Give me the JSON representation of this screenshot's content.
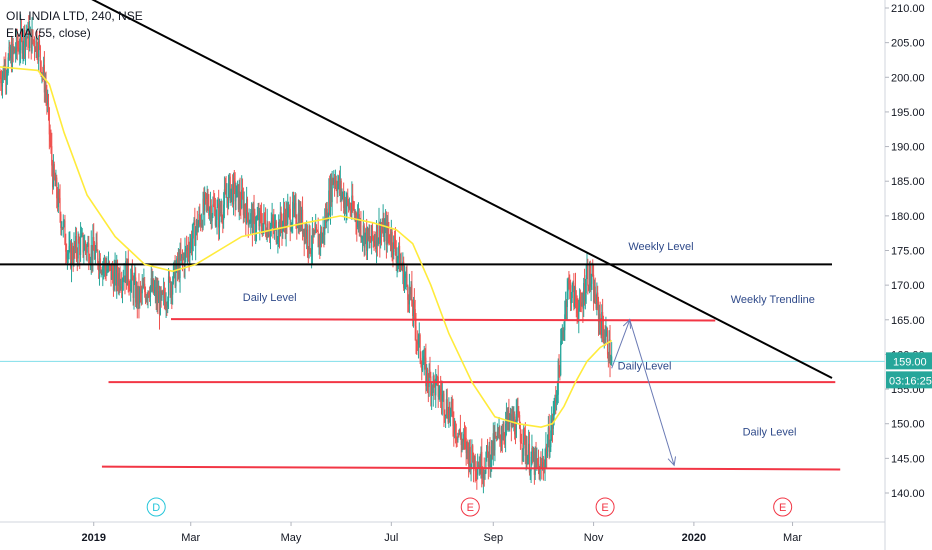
{
  "header": {
    "symbol": "OIL INDIA LTD, 240, NSE",
    "indicator": "EMA (55, close)"
  },
  "chart_data": {
    "type": "candlestick",
    "y_axis": {
      "range": [
        136.5,
        211.5
      ],
      "ticks": [
        140,
        145,
        150,
        155,
        160,
        165,
        170,
        175,
        180,
        185,
        190,
        195,
        200,
        205,
        210
      ],
      "tick_labels": [
        "140.00",
        "145.00",
        "150.00",
        "155.00",
        "160.00",
        "165.00",
        "170.00",
        "175.00",
        "180.00",
        "185.00",
        "190.00",
        "195.00",
        "200.00",
        "205.00",
        "210.00"
      ]
    },
    "x_axis": {
      "range": [
        "2018-11-05",
        "2020-03-25"
      ],
      "ticks": [
        {
          "date": "2019-01-01",
          "label": "2019"
        },
        {
          "date": "2019-03-01",
          "label": "Mar"
        },
        {
          "date": "2019-05-01",
          "label": "May"
        },
        {
          "date": "2019-07-01",
          "label": "Jul"
        },
        {
          "date": "2019-09-01",
          "label": "Sep"
        },
        {
          "date": "2019-11-01",
          "label": "Nov"
        },
        {
          "date": "2020-01-01",
          "label": "2020"
        },
        {
          "date": "2020-03-01",
          "label": "Mar"
        }
      ]
    },
    "price_path": [
      [
        "2018-11-05",
        200
      ],
      [
        "2018-11-12",
        203
      ],
      [
        "2018-11-20",
        206
      ],
      [
        "2018-11-28",
        205
      ],
      [
        "2018-12-03",
        198
      ],
      [
        "2018-12-07",
        186
      ],
      [
        "2018-12-12",
        180
      ],
      [
        "2018-12-17",
        174
      ],
      [
        "2018-12-24",
        176
      ],
      [
        "2018-12-31",
        175
      ],
      [
        "2019-01-07",
        173
      ],
      [
        "2019-01-14",
        171
      ],
      [
        "2019-01-21",
        172
      ],
      [
        "2019-01-28",
        168
      ],
      [
        "2019-02-04",
        170
      ],
      [
        "2019-02-11",
        167
      ],
      [
        "2019-02-18",
        171
      ],
      [
        "2019-02-25",
        174
      ],
      [
        "2019-03-04",
        178
      ],
      [
        "2019-03-11",
        182
      ],
      [
        "2019-03-18",
        180
      ],
      [
        "2019-03-25",
        184
      ],
      [
        "2019-04-01",
        182
      ],
      [
        "2019-04-08",
        179
      ],
      [
        "2019-04-15",
        179
      ],
      [
        "2019-04-22",
        178
      ],
      [
        "2019-04-29",
        180
      ],
      [
        "2019-05-06",
        180
      ],
      [
        "2019-05-13",
        176
      ],
      [
        "2019-05-20",
        177
      ],
      [
        "2019-05-27",
        186
      ],
      [
        "2019-06-03",
        182
      ],
      [
        "2019-06-10",
        180
      ],
      [
        "2019-06-17",
        176
      ],
      [
        "2019-06-24",
        178
      ],
      [
        "2019-07-01",
        177
      ],
      [
        "2019-07-08",
        172
      ],
      [
        "2019-07-13",
        168
      ],
      [
        "2019-07-17",
        162
      ],
      [
        "2019-07-22",
        157
      ],
      [
        "2019-07-29",
        155
      ],
      [
        "2019-08-05",
        152
      ],
      [
        "2019-08-12",
        148
      ],
      [
        "2019-08-19",
        145
      ],
      [
        "2019-08-26",
        144
      ],
      [
        "2019-09-02",
        147
      ],
      [
        "2019-09-09",
        150
      ],
      [
        "2019-09-16",
        150
      ],
      [
        "2019-09-23",
        145
      ],
      [
        "2019-09-30",
        143
      ],
      [
        "2019-10-07",
        150
      ],
      [
        "2019-10-12",
        160
      ],
      [
        "2019-10-16",
        170
      ],
      [
        "2019-10-21",
        168
      ],
      [
        "2019-10-24",
        166
      ],
      [
        "2019-10-28",
        172
      ],
      [
        "2019-10-31",
        170
      ],
      [
        "2019-11-05",
        165
      ],
      [
        "2019-11-09",
        162
      ],
      [
        "2019-11-12",
        159
      ]
    ],
    "ema": [
      [
        "2018-11-05",
        201.5
      ],
      [
        "2018-11-28",
        201
      ],
      [
        "2018-12-05",
        199
      ],
      [
        "2018-12-14",
        192
      ],
      [
        "2018-12-28",
        183
      ],
      [
        "2019-01-14",
        177
      ],
      [
        "2019-02-01",
        173
      ],
      [
        "2019-02-18",
        172
      ],
      [
        "2019-03-04",
        173
      ],
      [
        "2019-03-18",
        175
      ],
      [
        "2019-04-01",
        177
      ],
      [
        "2019-04-20",
        178
      ],
      [
        "2019-05-10",
        179
      ],
      [
        "2019-05-31",
        180
      ],
      [
        "2019-06-20",
        179
      ],
      [
        "2019-07-04",
        178
      ],
      [
        "2019-07-14",
        176
      ],
      [
        "2019-07-25",
        170
      ],
      [
        "2019-08-05",
        163
      ],
      [
        "2019-08-19",
        156
      ],
      [
        "2019-09-02",
        151
      ],
      [
        "2019-09-16",
        150
      ],
      [
        "2019-09-30",
        149.5
      ],
      [
        "2019-10-07",
        150
      ],
      [
        "2019-10-14",
        152.5
      ],
      [
        "2019-10-21",
        156
      ],
      [
        "2019-10-28",
        159
      ],
      [
        "2019-11-05",
        161
      ],
      [
        "2019-11-12",
        162
      ]
    ],
    "lines": [
      {
        "name": "weekly-trendline",
        "color": "#000000",
        "points": [
          [
            "2018-12-29",
            211.5
          ],
          [
            "2020-03-25",
            156.6
          ]
        ]
      },
      {
        "name": "weekly-level",
        "color": "#000000",
        "points": [
          [
            "2018-11-05",
            173
          ],
          [
            "2020-03-25",
            173
          ]
        ]
      },
      {
        "name": "daily-level-165",
        "color": "#f23645",
        "points": [
          [
            "2019-02-17",
            165.1
          ],
          [
            "2020-01-14",
            164.9
          ]
        ]
      },
      {
        "name": "daily-level-156",
        "color": "#f23645",
        "points": [
          [
            "2019-01-10",
            156.0
          ],
          [
            "2020-03-27",
            156.0
          ]
        ]
      },
      {
        "name": "daily-level-143",
        "color": "#f23645",
        "points": [
          [
            "2019-01-06",
            143.8
          ],
          [
            "2020-03-30",
            143.4
          ]
        ]
      }
    ],
    "projection": {
      "color": "#6b7bb5",
      "points": [
        [
          "2019-11-12",
          158
        ],
        [
          "2019-11-23",
          165
        ],
        [
          "2019-12-20",
          144
        ]
      ]
    },
    "annotations": [
      {
        "text": "Weekly Level",
        "x": "2019-12-12",
        "y": 175.1
      },
      {
        "text": "Weekly Trendline",
        "x": "2020-02-18",
        "y": 167.4
      },
      {
        "text": "Daily Level",
        "x": "2019-04-18",
        "y": 167.7
      },
      {
        "text": "Daily Level",
        "x": "2019-12-02",
        "y": 157.8
      },
      {
        "text": "Daily Level",
        "x": "2020-02-16",
        "y": 148.3
      }
    ],
    "events": [
      {
        "letter": "D",
        "date": "2019-02-08",
        "color": "#26c6da"
      },
      {
        "letter": "E",
        "date": "2019-08-18",
        "color": "#f23645"
      },
      {
        "letter": "E",
        "date": "2019-11-08",
        "color": "#f23645"
      },
      {
        "letter": "E",
        "date": "2020-02-24",
        "color": "#f23645"
      }
    ],
    "last_price": {
      "value": "159.00",
      "countdown": "03:16:25"
    },
    "colors": {
      "up": "#26a69a",
      "down": "#ef5350",
      "ema": "#ffeb3b",
      "axis": "#787b86"
    }
  }
}
